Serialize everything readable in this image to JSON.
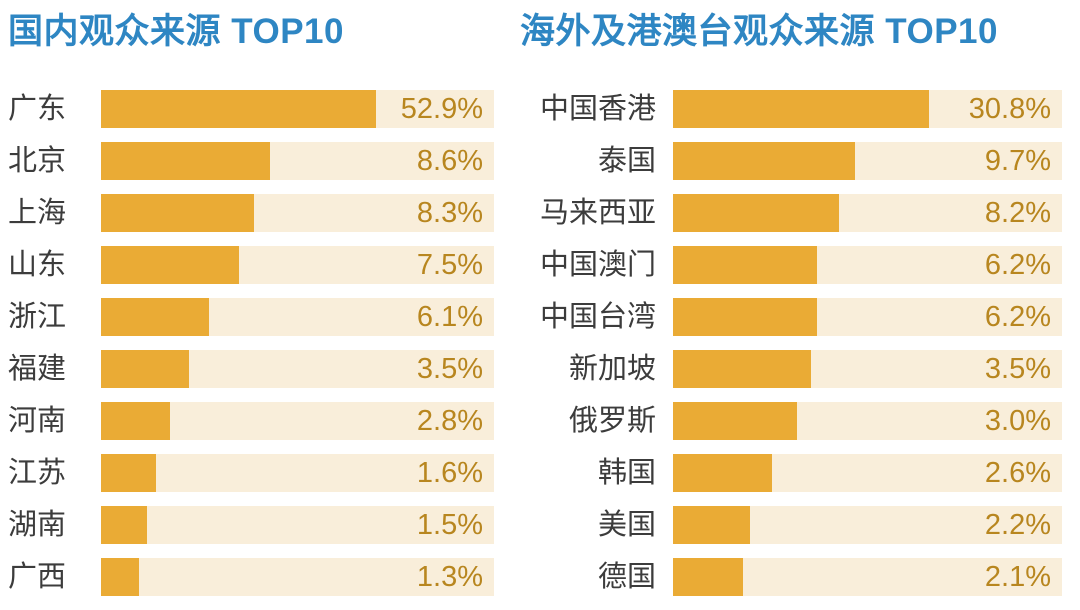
{
  "colors": {
    "title_blue": "#2E86C3",
    "bar_fill": "#EAAB35",
    "bar_track": "#F9EEDA",
    "value_text": "#B8861F",
    "label_text": "#3C3C3C",
    "background": "#FFFFFF"
  },
  "chart_data": [
    {
      "type": "bar",
      "orientation": "horizontal",
      "title": "国内观众来源 TOP10",
      "categories": [
        "广东",
        "北京",
        "上海",
        "山东",
        "浙江",
        "福建",
        "河南",
        "江苏",
        "湖南",
        "广西"
      ],
      "values": [
        52.9,
        8.6,
        8.3,
        7.5,
        6.1,
        3.5,
        2.8,
        1.6,
        1.5,
        1.3
      ],
      "value_labels": [
        "52.9%",
        "8.6%",
        "8.3%",
        "7.5%",
        "6.1%",
        "3.5%",
        "2.8%",
        "1.6%",
        "1.5%",
        "1.3%"
      ],
      "unit": "%",
      "legend": false,
      "grid": false,
      "layout": {
        "label_align": "left",
        "value_labels_position": "inside-track-right",
        "bar_fractions": [
          0.701,
          0.429,
          0.389,
          0.35,
          0.276,
          0.224,
          0.176,
          0.139,
          0.117,
          0.097
        ]
      }
    },
    {
      "type": "bar",
      "orientation": "horizontal",
      "title": "海外及港澳台观众来源 TOP10",
      "categories": [
        "中国香港",
        "泰国",
        "马来西亚",
        "中国澳门",
        "中国台湾",
        "新加坡",
        "俄罗斯",
        "韩国",
        "美国",
        "德国"
      ],
      "values": [
        30.8,
        9.7,
        8.2,
        6.2,
        6.2,
        3.5,
        3.0,
        2.6,
        2.2,
        2.1
      ],
      "value_labels": [
        "30.8%",
        "9.7%",
        "8.2%",
        "6.2%",
        "6.2%",
        "3.5%",
        "3.0%",
        "2.6%",
        "2.2%",
        "2.1%"
      ],
      "unit": "%",
      "legend": false,
      "grid": false,
      "layout": {
        "label_align": "right",
        "value_labels_position": "inside-track-right",
        "bar_fractions": [
          0.659,
          0.469,
          0.427,
          0.37,
          0.37,
          0.355,
          0.32,
          0.254,
          0.199,
          0.179
        ]
      }
    }
  ]
}
